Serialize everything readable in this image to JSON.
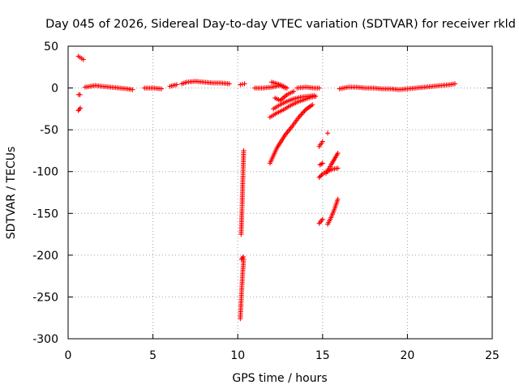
{
  "chart_data": {
    "type": "scatter",
    "title": "Day 045 of 2026, Sidereal Day-to-day VTEC variation (SDTVAR) for receiver rkld",
    "xlabel": "GPS time / hours",
    "ylabel": "SDTVAR / TECUs",
    "xlim": [
      0,
      25
    ],
    "ylim": [
      -300,
      50
    ],
    "xticks": [
      0,
      5,
      10,
      15,
      20,
      25
    ],
    "xtick_labels": [
      "0",
      "5",
      "10",
      "15",
      "20",
      "25"
    ],
    "yticks": [
      50,
      0,
      -50,
      -100,
      -150,
      -200,
      -250,
      -300
    ],
    "ytick_labels": [
      "50",
      "0",
      "-50",
      "-100",
      "-150",
      "-200",
      "-250",
      "-300"
    ],
    "grid": true,
    "marker": "+",
    "color": "#ff0000",
    "segments": [
      {
        "x": [
          0.6,
          0.9
        ],
        "y": [
          38,
          34
        ]
      },
      {
        "x": [
          0.62,
          0.7
        ],
        "y": [
          -8,
          -8
        ]
      },
      {
        "x": [
          0.6,
          0.72
        ],
        "y": [
          -27,
          -24
        ]
      },
      {
        "x": [
          1.0,
          1.3,
          1.6,
          2.0,
          2.5,
          3.0,
          3.5,
          3.8
        ],
        "y": [
          1,
          2,
          3,
          2,
          1,
          0,
          -1,
          -2
        ]
      },
      {
        "x": [
          4.5,
          5.0,
          5.5
        ],
        "y": [
          0,
          0,
          -1
        ]
      },
      {
        "x": [
          6.0,
          6.4
        ],
        "y": [
          2,
          4
        ]
      },
      {
        "x": [
          6.7,
          7.0,
          7.5,
          8.0,
          8.5,
          9.0,
          9.5
        ],
        "y": [
          5,
          7,
          8,
          7,
          6,
          6,
          5
        ]
      },
      {
        "x": [
          10.15,
          10.4
        ],
        "y": [
          4,
          5
        ]
      },
      {
        "x": [
          11.0,
          11.5,
          12.0,
          12.5,
          12.8
        ],
        "y": [
          0,
          0,
          1,
          3,
          0
        ]
      },
      {
        "x": [
          12.0,
          12.5,
          12.9
        ],
        "y": [
          7,
          4,
          0
        ]
      },
      {
        "x": [
          12.2,
          12.5,
          12.9,
          13.3
        ],
        "y": [
          -12,
          -15,
          -8,
          -4
        ]
      },
      {
        "x": [
          13.5,
          14.0,
          14.5,
          14.8
        ],
        "y": [
          0,
          1,
          0,
          0
        ]
      },
      {
        "x": [
          11.9,
          12.3,
          12.7,
          13.1,
          13.5,
          13.9,
          14.3,
          14.6
        ],
        "y": [
          -35,
          -30,
          -26,
          -21,
          -17,
          -14,
          -11,
          -10
        ]
      },
      {
        "x": [
          12.1,
          12.5,
          12.9,
          13.3,
          13.7,
          14.1,
          14.5
        ],
        "y": [
          -25,
          -20,
          -16,
          -13,
          -11,
          -10,
          -9
        ]
      },
      {
        "x": [
          11.9,
          12.3,
          12.8,
          13.2,
          13.6,
          14.0,
          14.4
        ],
        "y": [
          -90,
          -72,
          -56,
          -46,
          -35,
          -26,
          -20
        ]
      },
      {
        "x": [
          10.2,
          10.25,
          10.3,
          10.35
        ],
        "y": [
          -175,
          -145,
          -110,
          -75
        ]
      },
      {
        "x": [
          10.22,
          10.32
        ],
        "y": [
          -205,
          -202
        ]
      },
      {
        "x": [
          10.15,
          10.2,
          10.25,
          10.3,
          10.35
        ],
        "y": [
          -276,
          -255,
          -235,
          -218,
          -205
        ]
      },
      {
        "x": [
          14.8,
          15.0
        ],
        "y": [
          -70,
          -64
        ]
      },
      {
        "x": [
          14.85,
          15.0
        ],
        "y": [
          -92,
          -90
        ]
      },
      {
        "x": [
          15.3
        ],
        "y": [
          -54
        ]
      },
      {
        "x": [
          14.8,
          15.0,
          15.2
        ],
        "y": [
          -107,
          -103,
          -100
        ]
      },
      {
        "x": [
          15.3,
          15.6,
          15.9
        ],
        "y": [
          -100,
          -97,
          -96
        ]
      },
      {
        "x": [
          15.2,
          15.5,
          15.9
        ],
        "y": [
          -102,
          -92,
          -78
        ]
      },
      {
        "x": [
          14.8,
          15.0
        ],
        "y": [
          -162,
          -157
        ]
      },
      {
        "x": [
          15.3,
          15.5,
          15.7,
          15.9
        ],
        "y": [
          -163,
          -155,
          -145,
          -133
        ]
      },
      {
        "x": [
          16.0,
          16.5,
          17.0,
          17.5,
          18.0,
          18.5,
          19.0,
          19.5,
          20.0,
          20.5,
          21.0,
          21.5,
          22.0,
          22.5,
          22.8
        ],
        "y": [
          -1,
          1,
          1,
          0,
          0,
          -1,
          -1,
          -2,
          -1,
          0,
          1,
          2,
          3,
          4,
          5
        ]
      }
    ]
  }
}
